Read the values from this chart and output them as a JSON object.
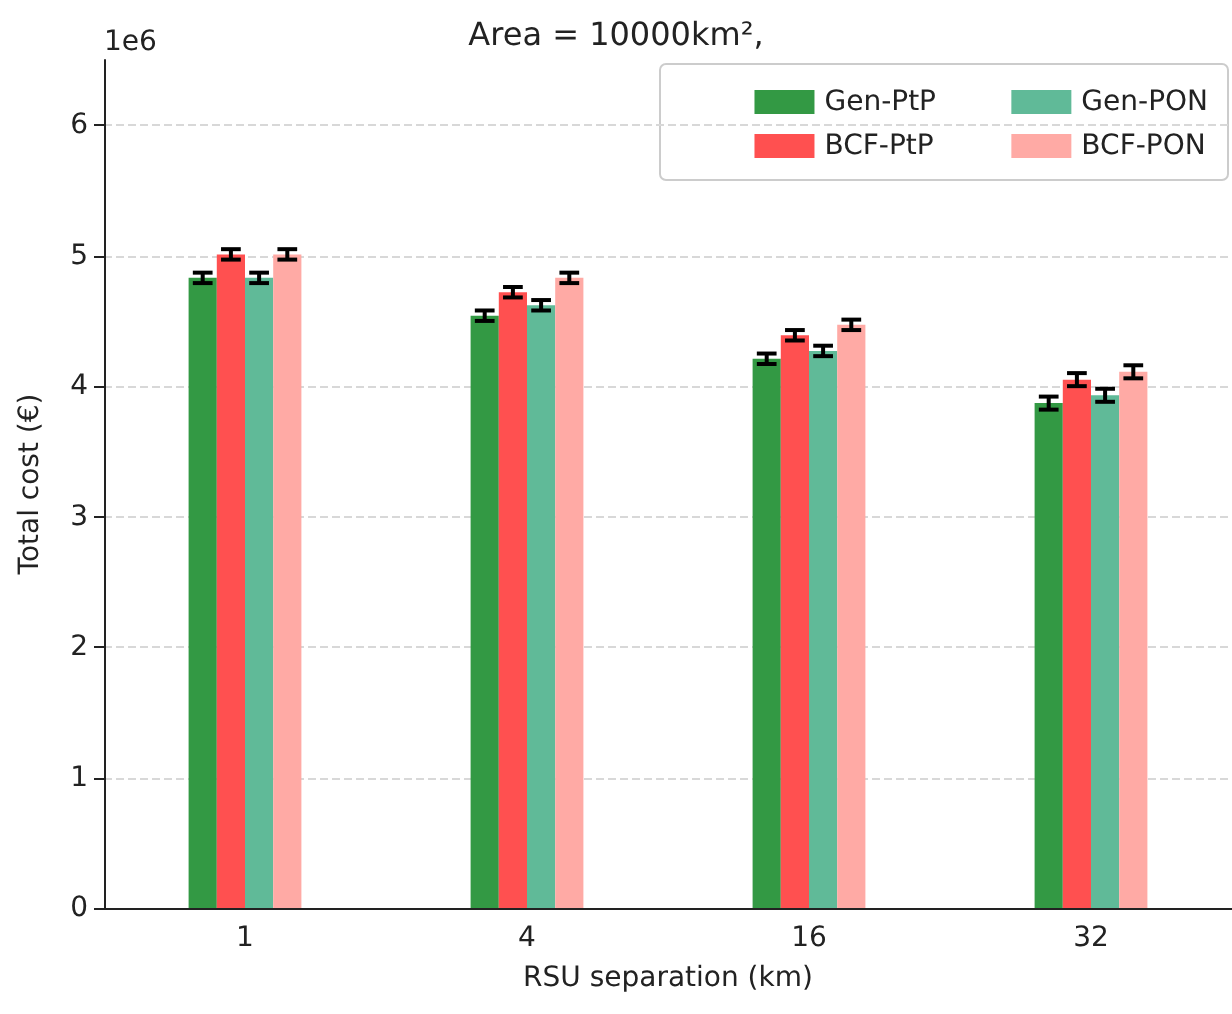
{
  "chart_data": {
    "type": "bar",
    "title": "Area = 10000km²,",
    "xlabel": "RSU separation (km)",
    "ylabel": "Total cost (€)",
    "annotations": [
      "1e6"
    ],
    "categories": [
      "1",
      "4",
      "16",
      "32"
    ],
    "series": [
      {
        "name": "Gen-PtP",
        "color": "#339944",
        "values": [
          4.83,
          4.54,
          4.21,
          3.87
        ],
        "errors": [
          0.04,
          0.04,
          0.04,
          0.05
        ]
      },
      {
        "name": "BCF-PtP",
        "color": "#ff5050",
        "values": [
          5.01,
          4.72,
          4.39,
          4.05
        ],
        "errors": [
          0.04,
          0.04,
          0.04,
          0.05
        ]
      },
      {
        "name": "Gen-PON",
        "color": "#60ba98",
        "values": [
          4.83,
          4.62,
          4.27,
          3.93
        ],
        "errors": [
          0.04,
          0.04,
          0.04,
          0.05
        ]
      },
      {
        "name": "BCF-PON",
        "color": "#ffaaa5",
        "values": [
          5.01,
          4.83,
          4.47,
          4.11
        ],
        "errors": [
          0.04,
          0.04,
          0.04,
          0.05
        ]
      }
    ],
    "ylim": [
      0,
      6.5
    ],
    "yticks": [
      0,
      1,
      2,
      3,
      4,
      5,
      6
    ],
    "grid": "y",
    "legend": "top right"
  }
}
